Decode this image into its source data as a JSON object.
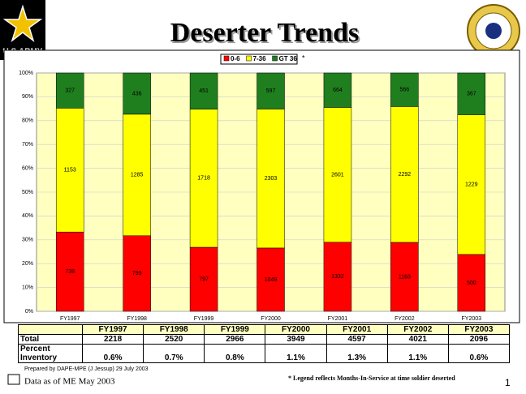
{
  "header": {
    "logo_text": "U.S.ARMY",
    "title": "Deserter Trends"
  },
  "chart_data": {
    "type": "bar",
    "stacking": "percent",
    "categories": [
      "FY1997",
      "FY1998",
      "FY1999",
      "FY2000",
      "FY2001",
      "FY2002",
      "FY2003"
    ],
    "series": [
      {
        "name": "0-6",
        "color": "#ff0000",
        "values": [
          738,
          799,
          797,
          1049,
          1332,
          1163,
          500
        ]
      },
      {
        "name": "7-36",
        "color": "#ffff00",
        "values": [
          1153,
          1285,
          1718,
          2303,
          2601,
          2292,
          1229
        ]
      },
      {
        "name": "GT 36",
        "color": "#1f7f1f",
        "values": [
          327,
          436,
          451,
          597,
          664,
          566,
          367
        ]
      }
    ],
    "legend_note": "*",
    "ylim": [
      0,
      100
    ],
    "yticks": [
      {
        "value": 0,
        "label": "0%"
      },
      {
        "value": 10,
        "label": "10%"
      },
      {
        "value": 20,
        "label": "20%"
      },
      {
        "value": 30,
        "label": "30%"
      },
      {
        "value": 40,
        "label": "40%"
      },
      {
        "value": 50,
        "label": "50%"
      },
      {
        "value": 60,
        "label": "60%"
      },
      {
        "value": 70,
        "label": "70%"
      },
      {
        "value": 80,
        "label": "80%"
      },
      {
        "value": 90,
        "label": "90%"
      },
      {
        "value": 100,
        "label": "100%"
      }
    ],
    "grid": true
  },
  "table": {
    "columns": [
      "FY1997",
      "FY1998",
      "FY1999",
      "FY2000",
      "FY2001",
      "FY2002",
      "FY2003"
    ],
    "rows": [
      {
        "label": "Total",
        "values": [
          "2218",
          "2520",
          "2966",
          "3949",
          "4597",
          "4021",
          "2096"
        ]
      },
      {
        "label": "Percent Inventory",
        "values": [
          "0.6%",
          "0.7%",
          "0.8%",
          "1.1%",
          "1.3%",
          "1.1%",
          "0.6%"
        ]
      }
    ]
  },
  "footer": {
    "prepared": "Prepared by DAPE-MPE (J Jessup) 29 July 2003",
    "data_as_of": "Data as of ME May 2003",
    "note": "* Legend reflects Months-In-Service at time soldier deserted",
    "page": "1"
  }
}
